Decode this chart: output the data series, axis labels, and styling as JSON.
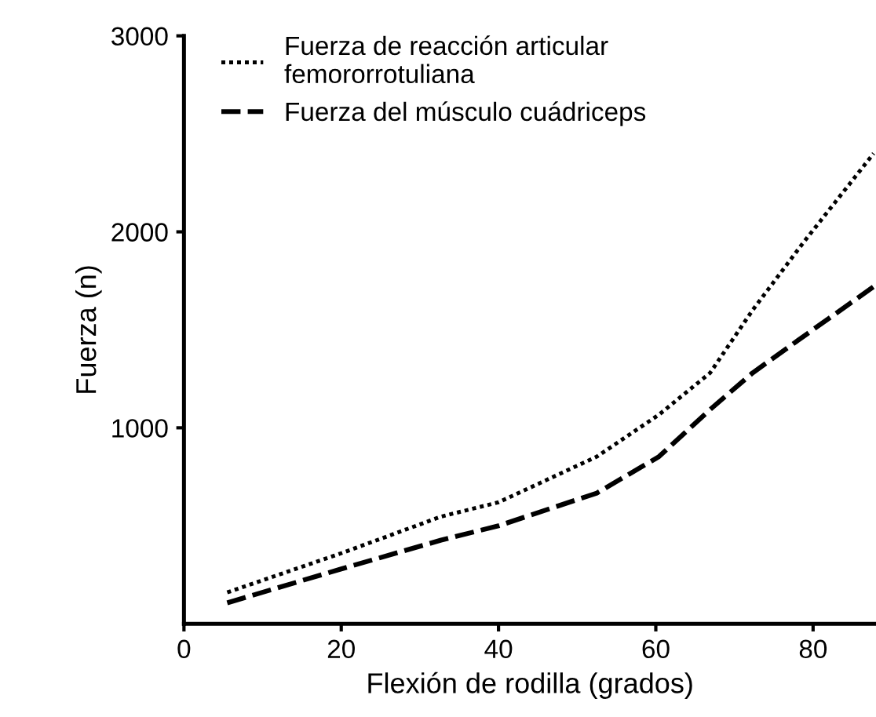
{
  "chart_data": {
    "type": "line",
    "xlabel": "Flexión de rodilla (grados)",
    "ylabel": "Fuerza (n)",
    "xlim": [
      0,
      88
    ],
    "ylim": [
      0,
      3000
    ],
    "xticks": [
      0,
      20,
      40,
      60,
      80
    ],
    "yticks": [
      {
        "value": 1000,
        "label": "1000"
      },
      {
        "value": 2000,
        "label": "2000"
      },
      {
        "value": 3000,
        "label": "3000"
      }
    ],
    "grid": false,
    "legend": "top left",
    "series": [
      {
        "name": "Fuerza de reacción articular\nfemororrotuliana",
        "color": "#000000",
        "line_style": "dotted",
        "x": [
          5.5,
          20,
          32.7,
          40,
          52.5,
          60.4,
          66.9,
          72.3,
          78.8,
          87.7
        ],
        "values": [
          160,
          360,
          547,
          620,
          853,
          1067,
          1280,
          1600,
          1947,
          2400
        ]
      },
      {
        "name": "Fuerza del músculo cuádriceps",
        "color": "#000000",
        "line_style": "dashed",
        "x": [
          5.5,
          20,
          32.7,
          40,
          52.5,
          60.4,
          66.9,
          72.3,
          78.8,
          87.7
        ],
        "values": [
          107,
          280,
          427,
          500,
          667,
          853,
          1093,
          1280,
          1467,
          1720
        ]
      }
    ]
  }
}
